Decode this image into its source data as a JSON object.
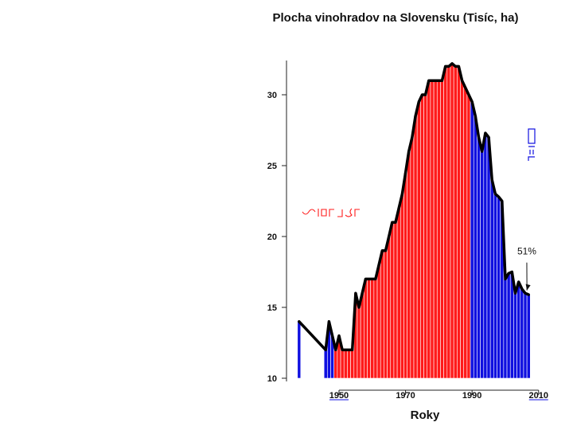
{
  "chart_data": {
    "type": "area",
    "title": "Plocha vinohradov na Slovensku (Tisíc, ha)",
    "xlabel": "Roky",
    "ylabel": "",
    "xlim": [
      1936,
      2010
    ],
    "ylim": [
      10,
      32.5
    ],
    "x_ticks": [
      1950,
      1970,
      1990,
      2010
    ],
    "y_ticks": [
      10,
      15,
      20,
      25,
      30
    ],
    "x_tick_labels": [
      "1950",
      "1970",
      "1990",
      "2010"
    ],
    "y_tick_labels": [
      "10",
      "15",
      "20",
      "25",
      "30"
    ],
    "colors": {
      "period_1": "#1010e0",
      "period_2": "#ff1a1a",
      "outline": "#000000",
      "tick_label_accent": "#1010e0"
    },
    "series": [
      {
        "x": [
          1938,
          1946,
          1947,
          1948,
          1949,
          1950,
          1951,
          1952,
          1953,
          1954,
          1955,
          1956,
          1957,
          1958,
          1959,
          1960,
          1961,
          1962,
          1963,
          1964,
          1965,
          1966,
          1967,
          1968,
          1969,
          1970,
          1971,
          1972,
          1973,
          1974,
          1975,
          1976,
          1977,
          1978,
          1979,
          1980,
          1981,
          1982,
          1983,
          1984,
          1985,
          1986,
          1987,
          1988,
          1989,
          1990,
          1991,
          1992,
          1993,
          1994,
          1995,
          1996,
          1997,
          1998,
          1999,
          2000,
          2001,
          2002,
          2003,
          2004,
          2005,
          2006,
          2007
        ],
        "values": [
          14.0,
          12.0,
          14.0,
          13.0,
          12.0,
          13.0,
          12.0,
          12.0,
          12.0,
          12.0,
          16.0,
          15.0,
          16.0,
          17.0,
          17.0,
          17.0,
          17.0,
          18.0,
          19.0,
          19.0,
          20.0,
          21.0,
          21.0,
          22.0,
          23.0,
          24.5,
          26.0,
          27.0,
          28.5,
          29.5,
          30.0,
          30.0,
          31.0,
          31.0,
          31.0,
          31.0,
          31.0,
          32.0,
          32.0,
          32.2,
          32.0,
          32.0,
          31.0,
          30.5,
          30.0,
          29.5,
          28.5,
          27.0,
          26.0,
          27.3,
          27.0,
          24.0,
          23.0,
          22.8,
          22.5,
          17.0,
          17.4,
          17.5,
          16.0,
          16.8,
          16.3,
          16.0,
          15.9
        ],
        "color_by_range": [
          {
            "from": 1936,
            "to": 1949,
            "color": "#1010e0"
          },
          {
            "from": 1949,
            "to": 1990,
            "color": "#ff1a1a"
          },
          {
            "from": 1990,
            "to": 2008,
            "color": "#1010e0"
          }
        ]
      }
    ],
    "annotations": [
      {
        "text": "51%",
        "x": 2005.5,
        "y": 17.6,
        "arrow_to": [
          2006.5,
          16.2
        ]
      }
    ],
    "grid": false
  }
}
